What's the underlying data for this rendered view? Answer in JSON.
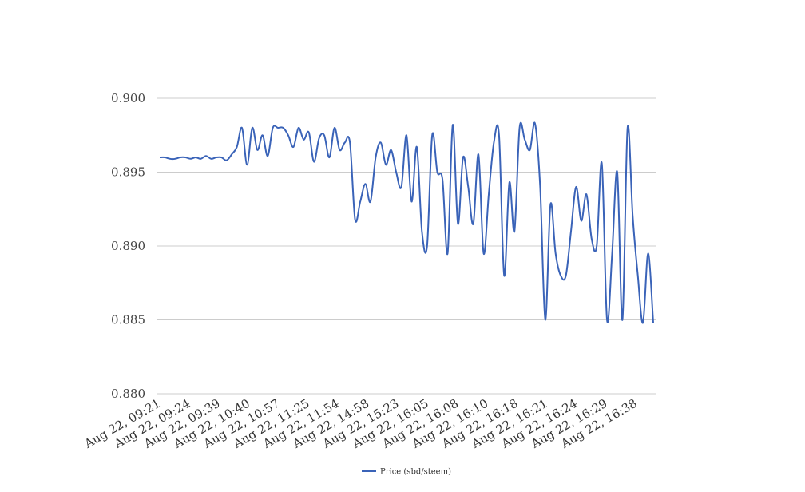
{
  "chart_data": {
    "type": "line",
    "title": "",
    "xlabel": "",
    "ylabel": "",
    "ylim": [
      0.88,
      0.9
    ],
    "yticks": [
      "0.880",
      "0.885",
      "0.890",
      "0.895",
      "0.900"
    ],
    "grid": true,
    "legend_position": "bottom-center",
    "xtick_labels": [
      "Aug 22, 09:21",
      "Aug 22, 09:24",
      "Aug 22, 09:39",
      "Aug 22, 10:40",
      "Aug 22, 10:57",
      "Aug 22, 11:25",
      "Aug 22, 11:54",
      "Aug 22, 14:58",
      "Aug 22, 15:23",
      "Aug 22, 16:05",
      "Aug 22, 16:08",
      "Aug 22, 16:10",
      "Aug 22, 16:18",
      "Aug 22, 16:21",
      "Aug 22, 16:24",
      "Aug 22, 16:29",
      "Aug 22, 16:38"
    ],
    "series": [
      {
        "name": "Price (sbd/steem)",
        "color": "#3a63b8",
        "values": [
          0.896,
          0.896,
          0.8959,
          0.8959,
          0.896,
          0.896,
          0.8959,
          0.896,
          0.8959,
          0.8961,
          0.8959,
          0.896,
          0.896,
          0.8958,
          0.8962,
          0.8967,
          0.898,
          0.8955,
          0.898,
          0.8965,
          0.8975,
          0.8961,
          0.898,
          0.898,
          0.898,
          0.8975,
          0.8967,
          0.898,
          0.8972,
          0.8977,
          0.8957,
          0.8973,
          0.8975,
          0.896,
          0.898,
          0.8965,
          0.897,
          0.897,
          0.8918,
          0.893,
          0.8942,
          0.893,
          0.896,
          0.897,
          0.8955,
          0.8965,
          0.895,
          0.894,
          0.8975,
          0.893,
          0.8967,
          0.891,
          0.89,
          0.8975,
          0.895,
          0.8945,
          0.8895,
          0.8982,
          0.8915,
          0.896,
          0.894,
          0.8915,
          0.8962,
          0.8895,
          0.8935,
          0.897,
          0.8975,
          0.888,
          0.8943,
          0.891,
          0.898,
          0.8972,
          0.8965,
          0.8983,
          0.894,
          0.885,
          0.8928,
          0.8895,
          0.888,
          0.888,
          0.891,
          0.894,
          0.8917,
          0.8935,
          0.8905,
          0.89,
          0.8956,
          0.885,
          0.8895,
          0.895,
          0.885,
          0.898,
          0.892,
          0.888,
          0.8848,
          0.8895,
          0.8848
        ]
      }
    ]
  }
}
